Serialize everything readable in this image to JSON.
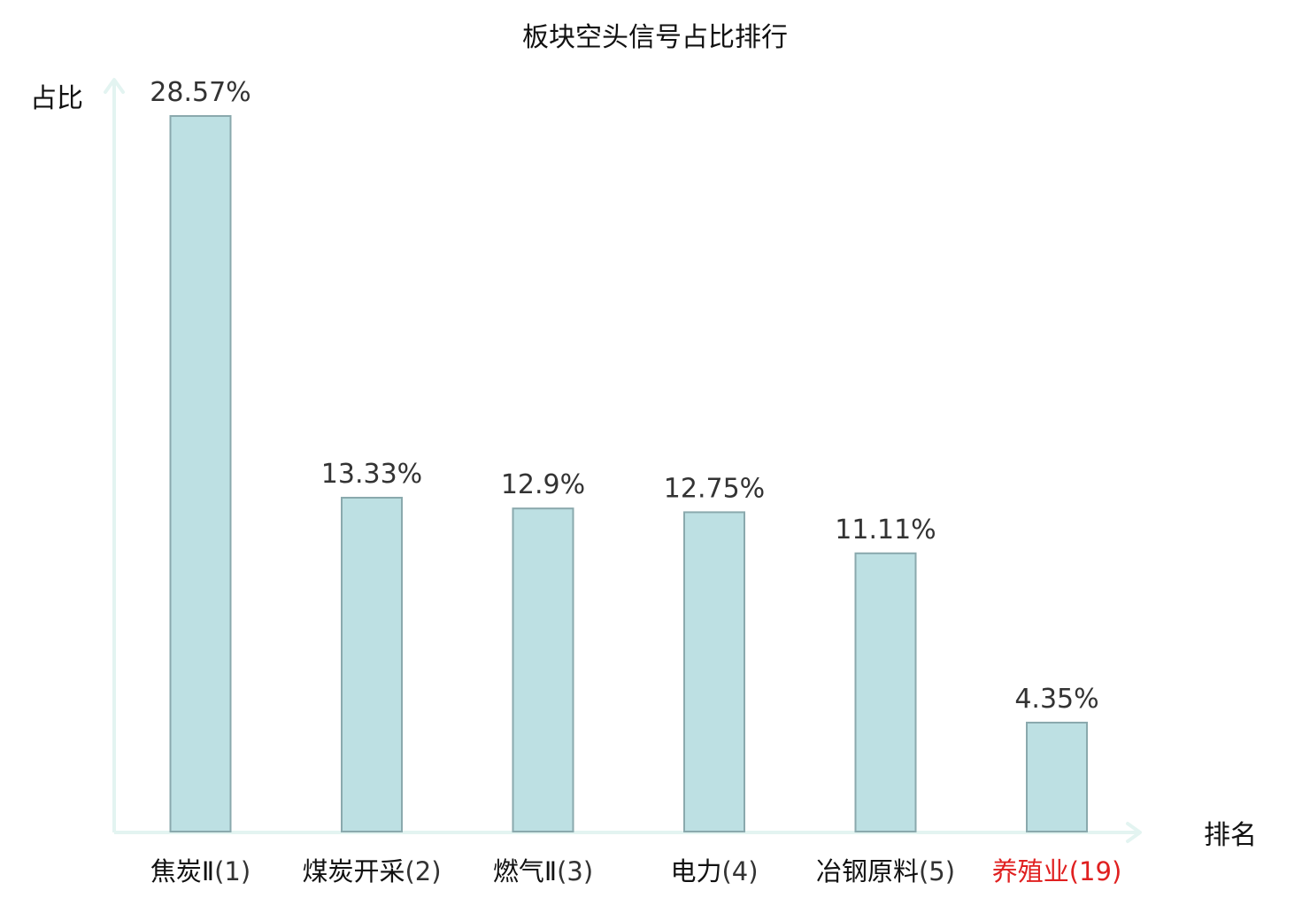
{
  "chart_data": {
    "type": "bar",
    "title": "板块空头信号占比排行",
    "ylabel": "占比",
    "xlabel": "排名",
    "categories": [
      "焦炭Ⅱ(1)",
      "煤炭开采(2)",
      "燃气Ⅱ(3)",
      "电力(4)",
      "冶钢原料(5)",
      "养殖业(19)"
    ],
    "category_names": [
      "焦炭Ⅱ",
      "煤炭开采",
      "燃气Ⅱ",
      "电力",
      "冶钢原料",
      "养殖业"
    ],
    "category_ranks": [
      "(1)",
      "(2)",
      "(3)",
      "(4)",
      "(5)",
      "(19)"
    ],
    "values": [
      28.57,
      13.33,
      12.9,
      12.75,
      11.11,
      4.35
    ],
    "value_labels": [
      "28.57%",
      "13.33%",
      "12.9%",
      "12.75%",
      "11.11%",
      "4.35%"
    ],
    "highlight_index": 5,
    "ylim": [
      0,
      28.57
    ],
    "grid": false,
    "legend": "none",
    "colors": {
      "bar_fill": "#bde0e3",
      "bar_stroke": "#8aa9ad",
      "axis": "#e3f4f1",
      "highlight_text": "#e02020"
    }
  }
}
